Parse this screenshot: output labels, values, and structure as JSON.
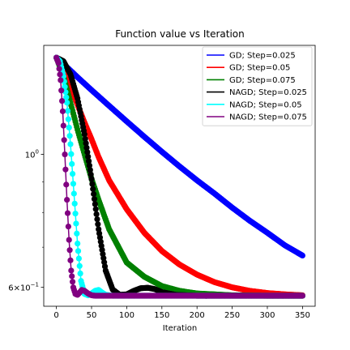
{
  "chart_data": {
    "type": "line",
    "title": "Function value vs Iteration",
    "xlabel": "Iteration",
    "ylabel": "",
    "yscale": "log",
    "xlim": [
      -18,
      368
    ],
    "ylim": [
      0.558,
      1.52
    ],
    "x_ticks": [
      0,
      50,
      100,
      150,
      200,
      250,
      300,
      350
    ],
    "x_tick_labels": [
      "0",
      "50",
      "100",
      "150",
      "200",
      "250",
      "300",
      "350"
    ],
    "y_major_ticks": [
      1.0,
      0.6
    ],
    "y_major_tick_labels": [
      "10^0",
      "6×10^-1"
    ],
    "y_minor_ticks": [
      0.9,
      0.8,
      0.7
    ],
    "legend_position": "top-right",
    "grid": false,
    "series": [
      {
        "name": "GD; Step=0.025",
        "color": "#0000ff",
        "x": [
          0,
          10,
          20,
          30,
          50,
          75,
          100,
          125,
          150,
          175,
          200,
          225,
          250,
          275,
          300,
          325,
          350
        ],
        "y": [
          1.45,
          1.415,
          1.38,
          1.345,
          1.28,
          1.205,
          1.135,
          1.07,
          1.01,
          0.955,
          0.905,
          0.86,
          0.815,
          0.775,
          0.74,
          0.705,
          0.678
        ]
      },
      {
        "name": "GD; Step=0.05",
        "color": "#ff0000",
        "x": [
          0,
          10,
          20,
          30,
          40,
          50,
          60,
          75,
          100,
          125,
          150,
          175,
          200,
          225,
          250,
          275,
          300,
          325,
          350
        ],
        "y": [
          1.45,
          1.38,
          1.3,
          1.21,
          1.13,
          1.06,
          0.99,
          0.905,
          0.81,
          0.74,
          0.69,
          0.655,
          0.63,
          0.612,
          0.6,
          0.592,
          0.587,
          0.584,
          0.582
        ]
      },
      {
        "name": "GD; Step=0.075",
        "color": "#008000",
        "x": [
          0,
          10,
          20,
          30,
          40,
          50,
          60,
          75,
          100,
          125,
          150,
          175,
          200,
          250,
          300,
          350
        ],
        "y": [
          1.45,
          1.35,
          1.22,
          1.1,
          1.0,
          0.91,
          0.84,
          0.75,
          0.66,
          0.625,
          0.603,
          0.592,
          0.586,
          0.582,
          0.581,
          0.581
        ]
      },
      {
        "name": "NAGD; Step=0.025",
        "color": "#000000",
        "x": [
          0,
          5,
          10,
          20,
          30,
          40,
          50,
          60,
          70,
          80,
          90,
          100,
          110,
          120,
          130,
          140,
          150,
          170,
          200,
          250,
          300,
          350
        ],
        "y": [
          1.45,
          1.44,
          1.43,
          1.36,
          1.24,
          1.08,
          0.91,
          0.75,
          0.64,
          0.595,
          0.583,
          0.584,
          0.592,
          0.598,
          0.599,
          0.596,
          0.589,
          0.583,
          0.581,
          0.581,
          0.581,
          0.581
        ]
      },
      {
        "name": "NAGD; Step=0.05",
        "color": "#00ffff",
        "x": [
          0,
          5,
          10,
          15,
          20,
          25,
          30,
          35,
          40,
          45,
          50,
          55,
          60,
          65,
          70,
          80,
          90,
          100,
          150,
          200,
          250,
          300,
          350
        ],
        "y": [
          1.45,
          1.43,
          1.35,
          1.22,
          1.04,
          0.86,
          0.71,
          0.615,
          0.585,
          0.582,
          0.586,
          0.592,
          0.594,
          0.588,
          0.583,
          0.581,
          0.581,
          0.581,
          0.581,
          0.581,
          0.581,
          0.581,
          0.581
        ]
      },
      {
        "name": "NAGD; Step=0.075",
        "color": "#800080",
        "x": [
          0,
          3,
          6,
          9,
          12,
          15,
          18,
          21,
          24,
          27,
          30,
          33,
          36,
          40,
          45,
          50,
          55,
          60,
          70,
          80,
          100,
          150,
          200,
          250,
          300,
          350
        ],
        "y": [
          1.45,
          1.42,
          1.33,
          1.18,
          1.0,
          0.84,
          0.72,
          0.64,
          0.6,
          0.585,
          0.583,
          0.588,
          0.594,
          0.592,
          0.586,
          0.582,
          0.581,
          0.581,
          0.581,
          0.581,
          0.581,
          0.581,
          0.581,
          0.581,
          0.581,
          0.581
        ]
      }
    ]
  }
}
